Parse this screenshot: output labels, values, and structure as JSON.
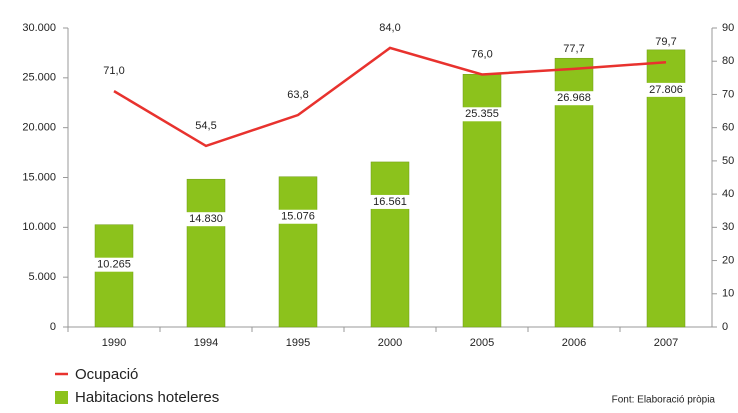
{
  "chart_data": {
    "type": "bar",
    "categories": [
      "1990",
      "1994",
      "1995",
      "2000",
      "2005",
      "2006",
      "2007"
    ],
    "series": [
      {
        "name": "Habitacions hoteleres",
        "type": "bar",
        "color": "#8cc21c",
        "values": [
          10265,
          14830,
          15076,
          16561,
          25355,
          26968,
          27806
        ],
        "value_labels": [
          "10.265",
          "14.830",
          "15.076",
          "16.561",
          "25.355",
          "26.968",
          "27.806"
        ]
      },
      {
        "name": "Ocupació",
        "type": "line",
        "axis": "y2",
        "color": "#e8322e",
        "values": [
          71.0,
          54.5,
          63.8,
          84.0,
          76.0,
          77.7,
          79.7
        ],
        "value_labels": [
          "71,0",
          "54,5",
          "63,8",
          "84,0",
          "76,0",
          "77,7",
          "79,7"
        ]
      }
    ],
    "ylim": [
      0,
      30000
    ],
    "yticks": [
      0,
      {
        "value": 5000,
        "label": "5.000"
      },
      {
        "value": 10000,
        "label": "10.000"
      },
      {
        "value": 15000,
        "label": "15.000"
      },
      {
        "value": 20000,
        "label": "20.000"
      },
      {
        "value": 25000,
        "label": "25.000"
      },
      {
        "value": 30000,
        "label": "30.000"
      }
    ],
    "y2lim": [
      0,
      90
    ],
    "y2ticks": [
      0,
      10,
      20,
      30,
      40,
      50,
      60,
      70,
      80,
      90
    ],
    "source": "Font: Elaboració pròpia"
  }
}
